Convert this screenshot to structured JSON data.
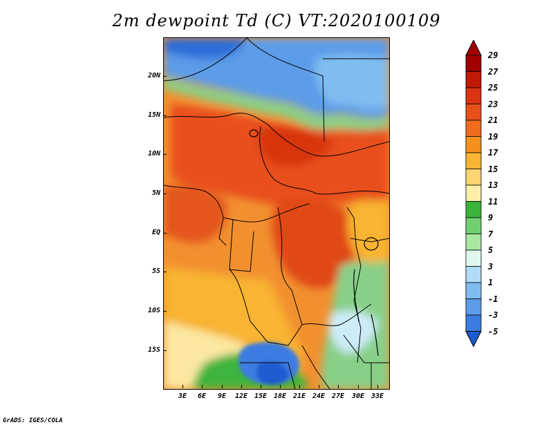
{
  "title": "2m dewpoint Td (C) VT:2020100109",
  "credit": "GrADS: IGES/COLA",
  "lat_labels": [
    "20N",
    "15N",
    "10N",
    "5N",
    "EQ",
    "5S",
    "10S",
    "15S"
  ],
  "lon_labels": [
    "3E",
    "6E",
    "9E",
    "12E",
    "15E",
    "18E",
    "21E",
    "24E",
    "27E",
    "30E",
    "33E"
  ],
  "colorbar": {
    "labels": [
      "29",
      "27",
      "25",
      "23",
      "21",
      "19",
      "17",
      "15",
      "13",
      "11",
      "9",
      "7",
      "5",
      "3",
      "1",
      "-1",
      "-3",
      "-5"
    ],
    "colors": [
      "#a00000",
      "#c01a06",
      "#dc3410",
      "#e8501a",
      "#f06c1c",
      "#f5901c",
      "#f8b432",
      "#fcd470",
      "#fcf0a8",
      "#3cb43c",
      "#70d070",
      "#a8e8a0",
      "#e0f8f0",
      "#b0dcf8",
      "#80bcf0",
      "#5c9ce8",
      "#3c7ce0",
      "#1c5cd0"
    ]
  }
}
